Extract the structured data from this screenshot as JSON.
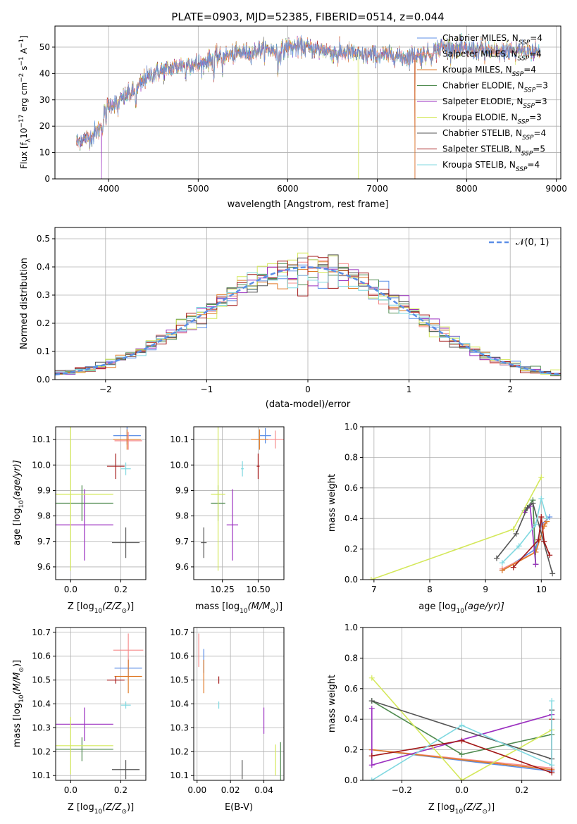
{
  "figure_title": "PLATE=0903, MJD=52385, FIBERID=0514, z=0.044",
  "colors": {
    "chabrier_miles": "#5B8EE6",
    "salpeter_miles": "#F58C8C",
    "kroupa_miles": "#E07B28",
    "chabrier_elodie": "#4E8A4E",
    "salpeter_elodie": "#9B30C0",
    "kroupa_elodie": "#D4E85A",
    "chabrier_stelib": "#555555",
    "salpeter_stelib": "#A31818",
    "kroupa_stelib": "#7FD8E0",
    "normal_curve": "#5B8EE6"
  },
  "chart_data": [
    {
      "id": "spectrum",
      "type": "line",
      "xlabel": "wavelength [Angstrom, rest frame]",
      "ylabel": "Flux [f",
      "ylabel_parts": [
        "Flux [f",
        "λ",
        "10",
        "−17",
        " erg cm",
        "−2",
        " s",
        "−1",
        " A",
        "−1",
        "]"
      ],
      "xlim": [
        3400,
        9050
      ],
      "ylim": [
        0,
        58
      ],
      "xticks": [
        4000,
        5000,
        6000,
        7000,
        8000,
        9000
      ],
      "yticks": [
        0,
        10,
        20,
        30,
        40,
        50
      ],
      "continuum": [
        [
          3640,
          14
        ],
        [
          3700,
          15
        ],
        [
          3800,
          16
        ],
        [
          3900,
          19
        ],
        [
          3950,
          25
        ],
        [
          4000,
          28
        ],
        [
          4100,
          29
        ],
        [
          4200,
          32
        ],
        [
          4300,
          33
        ],
        [
          4400,
          38
        ],
        [
          4500,
          40
        ],
        [
          4600,
          41
        ],
        [
          4700,
          42
        ],
        [
          4800,
          43
        ],
        [
          4900,
          44
        ],
        [
          5000,
          43
        ],
        [
          5100,
          45
        ],
        [
          5200,
          46
        ],
        [
          5300,
          47
        ],
        [
          5400,
          47
        ],
        [
          5500,
          48
        ],
        [
          5600,
          48
        ],
        [
          5700,
          49
        ],
        [
          5800,
          49
        ],
        [
          5900,
          48
        ],
        [
          6000,
          50
        ],
        [
          6100,
          50
        ],
        [
          6200,
          50
        ],
        [
          6300,
          49
        ],
        [
          6400,
          49
        ],
        [
          6500,
          48
        ],
        [
          6600,
          48
        ],
        [
          6700,
          48
        ],
        [
          6800,
          47
        ],
        [
          6900,
          47
        ],
        [
          7000,
          47
        ],
        [
          7100,
          47
        ],
        [
          7200,
          47
        ],
        [
          7300,
          46
        ],
        [
          7400,
          47
        ],
        [
          7500,
          47
        ],
        [
          7600,
          48
        ],
        [
          7700,
          50
        ],
        [
          7800,
          50
        ],
        [
          7900,
          49
        ],
        [
          8000,
          49
        ],
        [
          8100,
          49
        ],
        [
          8200,
          49
        ],
        [
          8300,
          48
        ],
        [
          8400,
          48
        ],
        [
          8500,
          49
        ],
        [
          8600,
          49
        ],
        [
          8700,
          49
        ],
        [
          8800,
          48
        ]
      ],
      "absorption_features": [
        [
          3934,
          -6
        ],
        [
          3969,
          -5
        ],
        [
          4102,
          -4
        ],
        [
          4304,
          -5
        ],
        [
          4861,
          -6
        ],
        [
          5175,
          -8
        ],
        [
          5270,
          -5
        ],
        [
          5890,
          -9
        ],
        [
          6563,
          -4
        ],
        [
          7600,
          -3
        ],
        [
          8200,
          -3
        ],
        [
          8542,
          -4
        ],
        [
          8662,
          -4
        ]
      ],
      "drops": [
        [
          3920,
          0
        ],
        [
          6790,
          0
        ],
        [
          7420,
          0
        ]
      ],
      "legend_position": "upper-right",
      "legend": [
        {
          "key": "chabrier_miles",
          "label": "Chabrier MILES, N",
          "sub": "SSP",
          "val": "=4"
        },
        {
          "key": "salpeter_miles",
          "label": "Salpeter MILES, N",
          "sub": "SSP",
          "val": "=4"
        },
        {
          "key": "kroupa_miles",
          "label": "Kroupa MILES, N",
          "sub": "SSP",
          "val": "=4"
        },
        {
          "key": "chabrier_elodie",
          "label": "Chabrier ELODIE, N",
          "sub": "SSP",
          "val": "=3"
        },
        {
          "key": "salpeter_elodie",
          "label": "Salpeter ELODIE, N",
          "sub": "SSP",
          "val": "=3"
        },
        {
          "key": "kroupa_elodie",
          "label": "Kroupa ELODIE, N",
          "sub": "SSP",
          "val": "=3"
        },
        {
          "key": "chabrier_stelib",
          "label": "Chabrier STELIB, N",
          "sub": "SSP",
          "val": "=4"
        },
        {
          "key": "salpeter_stelib",
          "label": "Salpeter STELIB, N",
          "sub": "SSP",
          "val": "=5"
        },
        {
          "key": "kroupa_stelib",
          "label": "Kroupa STELIB, N",
          "sub": "SSP",
          "val": "=4"
        }
      ]
    },
    {
      "id": "residuals",
      "type": "histogram",
      "xlabel": "(data-model)/error",
      "ylabel": "Normed distribution",
      "xlim": [
        -2.5,
        2.5
      ],
      "ylim": [
        0,
        0.54
      ],
      "xticks": [
        -2,
        -1,
        0,
        1,
        2
      ],
      "yticks": [
        0.0,
        0.1,
        0.2,
        0.3,
        0.4,
        0.5
      ],
      "bin_width": 0.1,
      "legend_position": "upper-right",
      "legend_label": "𝒩(0, 1)"
    },
    {
      "id": "age_vs_Z",
      "type": "errorbar",
      "xlabel": "Z [log",
      "xlabel_parts": [
        "Z [log",
        "10",
        "(Z/Z",
        "⊙",
        ")]"
      ],
      "ylabel": "age  [log",
      "ylabel_parts": [
        "age  [log",
        "10",
        "(age/yr)]"
      ],
      "xlim": [
        -0.06,
        0.3
      ],
      "ylim": [
        9.55,
        10.15
      ],
      "xticks": [
        0.0,
        0.2
      ],
      "yticks": [
        9.6,
        9.7,
        9.8,
        9.9,
        10.0,
        10.1
      ],
      "points": [
        {
          "key": "chabrier_miles",
          "x": 0.225,
          "y": 10.115,
          "xerr": 0.055,
          "yerr": 0.035
        },
        {
          "key": "salpeter_miles",
          "x": 0.23,
          "y": 10.095,
          "xerr": 0.055,
          "yerr": 0.035
        },
        {
          "key": "kroupa_miles",
          "x": 0.225,
          "y": 10.1,
          "xerr": 0.055,
          "yerr": 0.04
        },
        {
          "key": "chabrier_elodie",
          "x": 0.045,
          "y": 9.85,
          "xerr": 0.125,
          "yerr": 0.07
        },
        {
          "key": "salpeter_elodie",
          "x": 0.055,
          "y": 9.765,
          "xerr": 0.115,
          "yerr": 0.14
        },
        {
          "key": "kroupa_elodie",
          "x": 0.0,
          "y": 9.885,
          "xerr": 0.17,
          "yerr": 0.3
        },
        {
          "key": "chabrier_stelib",
          "x": 0.22,
          "y": 9.695,
          "xerr": 0.055,
          "yerr": 0.06
        },
        {
          "key": "salpeter_stelib",
          "x": 0.18,
          "y": 9.995,
          "xerr": 0.035,
          "yerr": 0.05
        },
        {
          "key": "kroupa_stelib",
          "x": 0.22,
          "y": 9.985,
          "xerr": 0.02,
          "yerr": 0.025
        }
      ]
    },
    {
      "id": "age_vs_mass",
      "type": "errorbar",
      "xlabel": "mass [log",
      "xlabel_parts": [
        "mass [log",
        "10",
        "(M/M",
        "⊙",
        ")]"
      ],
      "xlim": [
        10.05,
        10.68
      ],
      "ylim": [
        9.55,
        10.15
      ],
      "xticks": [
        10.25,
        10.5
      ],
      "xtick_labels": [
        "10.25",
        "10.50"
      ],
      "yticks": [
        9.6,
        9.7,
        9.8,
        9.9,
        10.0,
        10.1
      ],
      "points": [
        {
          "key": "chabrier_miles",
          "x": 10.55,
          "y": 10.115,
          "xerr": 0.04,
          "yerr": 0.03
        },
        {
          "key": "salpeter_miles",
          "x": 10.62,
          "y": 10.1,
          "xerr": 0.06,
          "yerr": 0.035
        },
        {
          "key": "kroupa_miles",
          "x": 10.51,
          "y": 10.1,
          "xerr": 0.06,
          "yerr": 0.04
        },
        {
          "key": "chabrier_elodie",
          "x": 10.22,
          "y": 9.85,
          "xerr": 0.05,
          "yerr": 0.07
        },
        {
          "key": "salpeter_elodie",
          "x": 10.32,
          "y": 9.765,
          "xerr": 0.04,
          "yerr": 0.14
        },
        {
          "key": "kroupa_elodie",
          "x": 10.22,
          "y": 9.885,
          "xerr": 0.05,
          "yerr": 0.3
        },
        {
          "key": "chabrier_stelib",
          "x": 10.12,
          "y": 9.695,
          "xerr": 0.02,
          "yerr": 0.06
        },
        {
          "key": "salpeter_stelib",
          "x": 10.5,
          "y": 9.995,
          "xerr": 0.01,
          "yerr": 0.05
        },
        {
          "key": "kroupa_stelib",
          "x": 10.39,
          "y": 9.985,
          "xerr": 0.01,
          "yerr": 0.03
        }
      ]
    },
    {
      "id": "mass_weight_vs_age",
      "type": "line",
      "xlabel": "age  [log",
      "xlabel_parts": [
        "age  [log",
        "10",
        "(age/yr)]"
      ],
      "ylabel": "mass weight",
      "xlim": [
        6.8,
        10.35
      ],
      "ylim": [
        0,
        1.0
      ],
      "xticks": [
        7,
        8,
        9,
        10
      ],
      "yticks": [
        0.0,
        0.2,
        0.4,
        0.6,
        0.8,
        1.0
      ],
      "series": [
        {
          "key": "chabrier_miles",
          "x": [
            9.3,
            9.9,
            10.0,
            10.15
          ],
          "y": [
            0.06,
            0.2,
            0.36,
            0.41
          ]
        },
        {
          "key": "salpeter_miles",
          "x": [
            9.3,
            9.9,
            10.05,
            10.1
          ],
          "y": [
            0.07,
            0.18,
            0.35,
            0.4
          ]
        },
        {
          "key": "kroupa_miles",
          "x": [
            9.3,
            9.9,
            10.05,
            10.1
          ],
          "y": [
            0.06,
            0.18,
            0.35,
            0.38
          ]
        },
        {
          "key": "chabrier_elodie",
          "x": [
            9.7,
            9.85,
            9.9
          ],
          "y": [
            0.45,
            0.52,
            0.1
          ]
        },
        {
          "key": "salpeter_elodie",
          "x": [
            9.7,
            9.8,
            9.9
          ],
          "y": [
            0.44,
            0.48,
            0.1
          ]
        },
        {
          "key": "kroupa_elodie",
          "x": [
            6.95,
            9.5,
            10.0
          ],
          "y": [
            0.0,
            0.33,
            0.67
          ]
        },
        {
          "key": "chabrier_stelib",
          "x": [
            9.2,
            9.55,
            9.75,
            9.85,
            10.2
          ],
          "y": [
            0.14,
            0.3,
            0.47,
            0.5,
            0.04
          ]
        },
        {
          "key": "salpeter_stelib",
          "x": [
            9.5,
            9.95,
            10.0,
            10.05,
            10.15
          ],
          "y": [
            0.08,
            0.26,
            0.41,
            0.25,
            0.16
          ]
        },
        {
          "key": "kroupa_stelib",
          "x": [
            9.3,
            9.6,
            9.9,
            10.0,
            10.1
          ],
          "y": [
            0.11,
            0.22,
            0.36,
            0.53,
            0.4
          ]
        }
      ]
    },
    {
      "id": "mass_vs_Z",
      "type": "errorbar",
      "xlabel": "Z [log",
      "xlabel_parts": [
        "Z [log",
        "10",
        "(Z/Z",
        "⊙",
        ")]"
      ],
      "ylabel": "mass [log",
      "ylabel_parts": [
        "mass [log",
        "10",
        "(M/M",
        "⊙",
        ")]"
      ],
      "xlim": [
        -0.06,
        0.3
      ],
      "ylim": [
        10.08,
        10.72
      ],
      "xticks": [
        0.0,
        0.2
      ],
      "yticks": [
        10.1,
        10.2,
        10.3,
        10.4,
        10.5,
        10.6,
        10.7
      ],
      "points": [
        {
          "key": "chabrier_miles",
          "x": 0.23,
          "y": 10.55,
          "xerr": 0.055,
          "yerr": 0.04
        },
        {
          "key": "salpeter_miles",
          "x": 0.23,
          "y": 10.625,
          "xerr": 0.06,
          "yerr": 0.07
        },
        {
          "key": "kroupa_miles",
          "x": 0.23,
          "y": 10.515,
          "xerr": 0.055,
          "yerr": 0.07
        },
        {
          "key": "chabrier_elodie",
          "x": 0.045,
          "y": 10.21,
          "xerr": 0.125,
          "yerr": 0.05
        },
        {
          "key": "salpeter_elodie",
          "x": 0.055,
          "y": 10.315,
          "xerr": 0.115,
          "yerr": 0.07
        },
        {
          "key": "kroupa_elodie",
          "x": 0.0,
          "y": 10.225,
          "xerr": 0.17,
          "yerr": 0.12
        },
        {
          "key": "chabrier_stelib",
          "x": 0.22,
          "y": 10.125,
          "xerr": 0.055,
          "yerr": 0.04
        },
        {
          "key": "salpeter_stelib",
          "x": 0.18,
          "y": 10.5,
          "xerr": 0.035,
          "yerr": 0.015
        },
        {
          "key": "kroupa_stelib",
          "x": 0.22,
          "y": 10.395,
          "xerr": 0.02,
          "yerr": 0.015
        }
      ]
    },
    {
      "id": "mass_vs_ebv",
      "type": "errorbar",
      "xlabel": "E(B-V)",
      "xlim": [
        -0.002,
        0.052
      ],
      "ylim": [
        10.08,
        10.72
      ],
      "xticks": [
        0.0,
        0.02,
        0.04
      ],
      "xtick_labels": [
        "0.00",
        "0.02",
        "0.04"
      ],
      "yticks": [
        10.1,
        10.2,
        10.3,
        10.4,
        10.5,
        10.6,
        10.7
      ],
      "points": [
        {
          "key": "chabrier_miles",
          "x": 0.004,
          "y": 10.58,
          "xerr": 0,
          "yerr": 0.05
        },
        {
          "key": "salpeter_miles",
          "x": 0.001,
          "y": 10.625,
          "xerr": 0,
          "yerr": 0.07
        },
        {
          "key": "kroupa_miles",
          "x": 0.004,
          "y": 10.515,
          "xerr": 0,
          "yerr": 0.07
        },
        {
          "key": "chabrier_elodie",
          "x": 0.05,
          "y": 10.16,
          "xerr": 0,
          "yerr": 0.08
        },
        {
          "key": "salpeter_elodie",
          "x": 0.04,
          "y": 10.33,
          "xerr": 0,
          "yerr": 0.055
        },
        {
          "key": "kroupa_elodie",
          "x": 0.047,
          "y": 10.165,
          "xerr": 0,
          "yerr": 0.065
        },
        {
          "key": "chabrier_stelib",
          "x": 0.027,
          "y": 10.125,
          "xerr": 0,
          "yerr": 0.04
        },
        {
          "key": "salpeter_stelib",
          "x": 0.013,
          "y": 10.5,
          "xerr": 0,
          "yerr": 0.015
        },
        {
          "key": "kroupa_stelib",
          "x": 0.013,
          "y": 10.395,
          "xerr": 0,
          "yerr": 0.015
        }
      ]
    },
    {
      "id": "mass_weight_vs_Z",
      "type": "line",
      "xlabel": "Z [log",
      "xlabel_parts": [
        "Z [log",
        "10",
        "(Z/Z",
        "⊙",
        ")]"
      ],
      "ylabel": "mass weight",
      "xlim": [
        -0.33,
        0.33
      ],
      "ylim": [
        0,
        1.0
      ],
      "xticks": [
        -0.2,
        0.0,
        0.2
      ],
      "xtick_labels": [
        "−0.2",
        "0.0",
        "0.2"
      ],
      "yticks": [
        0.0,
        0.2,
        0.4,
        0.6,
        0.8,
        1.0
      ],
      "series": [
        {
          "key": "chabrier_miles",
          "x": [
            -0.3,
            0.3
          ],
          "y": [
            0.2,
            0.06
          ]
        },
        {
          "key": "salpeter_miles",
          "x": [
            -0.3,
            0.3
          ],
          "y": [
            0.2,
            0.08
          ]
        },
        {
          "key": "kroupa_miles",
          "x": [
            -0.3,
            0.3
          ],
          "y": [
            0.2,
            0.07
          ]
        },
        {
          "key": "chabrier_elodie",
          "x": [
            -0.3,
            0.0,
            0.3
          ],
          "y": [
            0.52,
            0.17,
            0.3
          ]
        },
        {
          "key": "salpeter_elodie",
          "x": [
            -0.3,
            -0.3,
            0.3
          ],
          "y": [
            0.47,
            0.1,
            0.43
          ]
        },
        {
          "key": "kroupa_elodie",
          "x": [
            -0.3,
            0.0,
            0.3
          ],
          "y": [
            0.67,
            0.0,
            0.33
          ]
        },
        {
          "key": "chabrier_stelib",
          "x": [
            -0.3,
            0.3,
            0.3
          ],
          "y": [
            0.52,
            0.14,
            0.46
          ]
        },
        {
          "key": "salpeter_stelib",
          "x": [
            -0.3,
            0.0,
            0.3,
            0.3
          ],
          "y": [
            0.16,
            0.26,
            0.05,
            0.4
          ]
        },
        {
          "key": "kroupa_stelib",
          "x": [
            -0.3,
            0.0,
            0.3,
            0.3
          ],
          "y": [
            0.0,
            0.36,
            0.1,
            0.52
          ]
        }
      ]
    }
  ]
}
